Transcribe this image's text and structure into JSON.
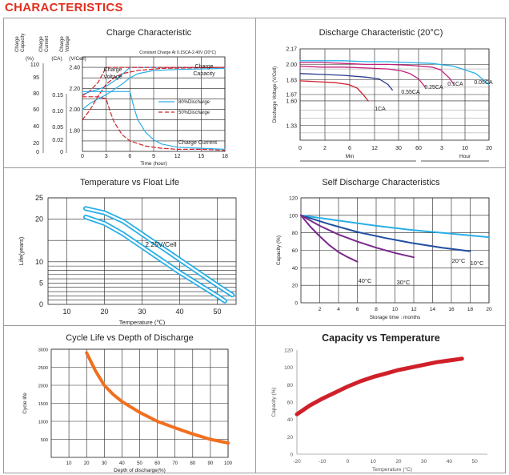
{
  "page": {
    "heading": "CHARACTERISTICS"
  },
  "colors": {
    "heading": "#e0301e",
    "cyan": "#29aee6",
    "darkBlue": "#1f4fa0",
    "navy": "#2a3a8c",
    "purple": "#7a2a8c",
    "magenta": "#c2207a",
    "red": "#d0202a",
    "orange": "#f07020",
    "grid": "#222222"
  },
  "chart_data": [
    {
      "id": "charge",
      "type": "line",
      "title": "Charge Characteristic",
      "xlabel": "Time (hour)",
      "xlim": [
        0,
        18
      ],
      "xticks": [
        "0",
        "3",
        "6",
        "9",
        "12",
        "15",
        "18"
      ],
      "header_labels": [
        "Charge Capacity",
        "Charge Current",
        "Charge Voltage"
      ],
      "units": [
        "(%)",
        "(CA)",
        "(V/Cell)"
      ],
      "axis_capacity": [
        "110",
        "95",
        "80",
        "60",
        "40",
        "20",
        "0"
      ],
      "axis_current": [
        "0.15",
        "0.10",
        "0.05",
        "0.02",
        "0"
      ],
      "axis_voltage": {
        "ticks": [
          "2.40",
          "2.20",
          "2.00",
          "1.80"
        ],
        "ylim": [
          1.6,
          2.5
        ]
      },
      "note": "Constant Charge At 0.15CA-2.40V (20°C)",
      "annotations": {
        "voltage": "Charge Voltage",
        "capacity": "Charge Capacity",
        "current": "Charge Current"
      },
      "legend": [
        "80%Discharge",
        "50%Discharge"
      ],
      "series": [
        {
          "name": "Voltage 80%",
          "style": "solid",
          "x": [
            0,
            1,
            2,
            3,
            4,
            5,
            6,
            8,
            10,
            12,
            15,
            18
          ],
          "y": [
            2.14,
            2.17,
            2.19,
            2.22,
            2.27,
            2.33,
            2.4,
            2.4,
            2.4,
            2.4,
            2.4,
            2.4
          ]
        },
        {
          "name": "Voltage 50%",
          "style": "dash",
          "x": [
            0,
            1,
            2,
            2.5,
            3,
            4,
            6,
            8,
            12,
            18
          ],
          "y": [
            2.13,
            2.18,
            2.26,
            2.33,
            2.4,
            2.4,
            2.4,
            2.4,
            2.4,
            2.4
          ]
        },
        {
          "name": "Capacity 80%",
          "style": "solid",
          "x": [
            0,
            1,
            2,
            3,
            4,
            5,
            6,
            7,
            9,
            12,
            18
          ],
          "y": [
            2.0,
            2.06,
            2.1,
            2.14,
            2.19,
            2.24,
            2.3,
            2.34,
            2.37,
            2.38,
            2.39
          ]
        },
        {
          "name": "Capacity 50%",
          "style": "dash",
          "x": [
            0,
            1,
            2,
            3,
            4,
            5,
            7,
            10,
            18
          ],
          "y": [
            1.9,
            2.0,
            2.13,
            2.24,
            2.3,
            2.34,
            2.37,
            2.39,
            2.4
          ]
        },
        {
          "name": "Current 80%",
          "style": "solid",
          "x": [
            0,
            2,
            4,
            5,
            6,
            6.5,
            7,
            8,
            9,
            10,
            12,
            15,
            18
          ],
          "y": [
            2.17,
            2.17,
            2.17,
            2.17,
            2.17,
            2.02,
            1.9,
            1.78,
            1.71,
            1.67,
            1.64,
            1.63,
            1.62
          ]
        },
        {
          "name": "Current 50%",
          "style": "dash",
          "x": [
            0,
            1,
            2,
            3,
            3.5,
            4,
            5,
            6,
            8,
            10,
            12,
            15,
            18
          ],
          "y": [
            2.12,
            2.12,
            2.12,
            2.1,
            1.98,
            1.88,
            1.76,
            1.7,
            1.65,
            1.63,
            1.62,
            1.62,
            1.61
          ]
        }
      ]
    },
    {
      "id": "discharge",
      "type": "line",
      "title": "Discharge Characteristic (20°C)",
      "ylabel": "Discharge Voltage (V/Cell)",
      "ylim": [
        1.17,
        2.17
      ],
      "yticks": [
        "2.17",
        "2.00",
        "1.83",
        "1.67",
        "1.60",
        "1.33"
      ],
      "xticks": [
        "0",
        "2",
        "6",
        "12",
        "30",
        "60",
        "3",
        "10",
        "20"
      ],
      "xgroups": [
        "Min",
        "Hour"
      ],
      "curve_labels": [
        "1CA",
        "0.55CA",
        "0.25CA",
        "0.1CA",
        "0.05CA"
      ],
      "series": [
        {
          "name": "0.05CA",
          "t": [
            0,
            0.5,
            1,
            1.5,
            2,
            2.5,
            3,
            3.5,
            4,
            4.3
          ],
          "y": [
            2.04,
            2.04,
            2.04,
            2.03,
            2.03,
            2.02,
            2.01,
            1.98,
            1.9,
            1.78
          ]
        },
        {
          "name": "0.1CA",
          "t": [
            0,
            0.5,
            1,
            1.5,
            2,
            2.5,
            3,
            3.2,
            3.4,
            3.5
          ],
          "y": [
            2.02,
            2.02,
            2.01,
            2.0,
            2.0,
            1.99,
            1.97,
            1.94,
            1.85,
            1.78
          ]
        },
        {
          "name": "0.25CA",
          "t": [
            0,
            0.5,
            1,
            1.5,
            2,
            2.3,
            2.5,
            2.7,
            2.85
          ],
          "y": [
            1.98,
            1.97,
            1.97,
            1.96,
            1.95,
            1.93,
            1.9,
            1.84,
            1.75
          ]
        },
        {
          "name": "0.55CA",
          "t": [
            0,
            0.5,
            1,
            1.5,
            1.8,
            2.0,
            2.1
          ],
          "y": [
            1.9,
            1.89,
            1.88,
            1.86,
            1.84,
            1.78,
            1.72
          ]
        },
        {
          "name": "1CA",
          "t": [
            0,
            0.4,
            0.8,
            1.1,
            1.3,
            1.45,
            1.55
          ],
          "y": [
            1.82,
            1.81,
            1.8,
            1.78,
            1.74,
            1.66,
            1.6
          ]
        }
      ]
    },
    {
      "id": "float",
      "type": "line",
      "title": "Temperature vs Float Life",
      "xlabel": "Temperature (℃)",
      "ylabel": "Life(years)",
      "xlim": [
        5,
        55
      ],
      "ylim": [
        0,
        25
      ],
      "xticks": [
        "10",
        "20",
        "30",
        "40",
        "50"
      ],
      "yticks": [
        "0",
        "5",
        "10",
        "20",
        "25"
      ],
      "series_label": "2.25V/Cell",
      "series": [
        {
          "name": "upper",
          "x": [
            15,
            20,
            25,
            30,
            40,
            50,
            54
          ],
          "y": [
            22.5,
            21.5,
            19.5,
            16.5,
            10.5,
            4.5,
            2.2
          ]
        },
        {
          "name": "lower",
          "x": [
            15,
            20,
            25,
            30,
            40,
            50,
            52
          ],
          "y": [
            20.5,
            19.0,
            16.5,
            13.5,
            7.5,
            2.0,
            0.8
          ]
        }
      ]
    },
    {
      "id": "self",
      "type": "line",
      "title": "Self Discharge Characteristics",
      "xlabel": "Storage time : months",
      "ylabel": "Capacity (%)",
      "xlim": [
        0,
        20
      ],
      "ylim": [
        0,
        120
      ],
      "xticks": [
        "2",
        "4",
        "6",
        "8",
        "10",
        "12",
        "14",
        "16",
        "18",
        "20"
      ],
      "yticks": [
        "0",
        "20",
        "40",
        "60",
        "80",
        "100",
        "120"
      ],
      "series": [
        {
          "name": "10°C",
          "x": [
            0,
            4,
            8,
            12,
            16,
            20
          ],
          "y": [
            100,
            94,
            88,
            83,
            79,
            75
          ]
        },
        {
          "name": "20°C",
          "x": [
            0,
            3,
            6,
            9,
            12,
            15,
            18
          ],
          "y": [
            100,
            90,
            81,
            74,
            68,
            63,
            59
          ]
        },
        {
          "name": "30°C",
          "x": [
            0,
            2,
            4,
            6,
            8,
            10,
            12
          ],
          "y": [
            100,
            88,
            78,
            70,
            63,
            57,
            52
          ]
        },
        {
          "name": "40°C",
          "x": [
            0,
            1,
            2,
            3,
            4,
            5,
            6
          ],
          "y": [
            100,
            87,
            76,
            66,
            58,
            52,
            47
          ]
        }
      ]
    },
    {
      "id": "cycle",
      "type": "line",
      "title": "Cycle Life vs Depth of Discharge",
      "xlabel": "Depth of discharge(%)",
      "ylabel": "Cycle life",
      "xlim": [
        0,
        100
      ],
      "ylim": [
        0,
        3000
      ],
      "xticks": [
        "10",
        "20",
        "30",
        "40",
        "50",
        "60",
        "70",
        "80",
        "90",
        "100"
      ],
      "yticks": [
        "500",
        "1000",
        "1500",
        "2000",
        "2500",
        "3000"
      ],
      "series": [
        {
          "name": "cycle",
          "x": [
            20,
            25,
            30,
            35,
            40,
            50,
            60,
            70,
            80,
            90,
            100
          ],
          "y": [
            2900,
            2400,
            2000,
            1750,
            1550,
            1250,
            1000,
            820,
            650,
            500,
            400
          ]
        }
      ]
    },
    {
      "id": "capacity",
      "type": "line",
      "title": "Capacity vs Temperature",
      "xlabel": "Temperature (°C)",
      "ylabel": "Capacity (%)",
      "xlim": [
        -20,
        55
      ],
      "ylim": [
        0,
        120
      ],
      "xticks": [
        "-20",
        "-10",
        "0",
        "10",
        "20",
        "30",
        "40",
        "50"
      ],
      "yticks": [
        "0",
        "20",
        "40",
        "60",
        "80",
        "100",
        "120"
      ],
      "series": [
        {
          "name": "capacity",
          "x": [
            -20,
            -15,
            -10,
            -5,
            0,
            5,
            10,
            15,
            20,
            25,
            30,
            35,
            40,
            45
          ],
          "y": [
            46,
            56,
            64,
            71,
            78,
            84,
            89,
            93,
            97,
            100,
            103,
            106,
            108,
            110
          ]
        }
      ]
    }
  ]
}
